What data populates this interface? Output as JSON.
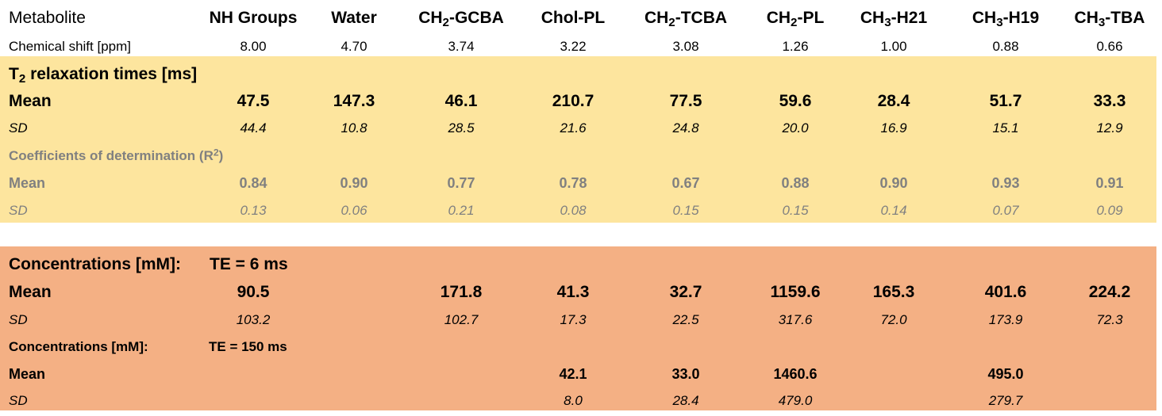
{
  "header": {
    "label": "Metabolite",
    "metabolites": [
      {
        "main": "NH Groups",
        "sub": "",
        "rest": ""
      },
      {
        "main": "Water",
        "sub": "",
        "rest": ""
      },
      {
        "main": "CH",
        "sub": "2",
        "rest": "-GCBA"
      },
      {
        "main": "Chol-PL",
        "sub": "",
        "rest": ""
      },
      {
        "main": "CH",
        "sub": "2",
        "rest": "-TCBA"
      },
      {
        "main": "CH",
        "sub": "2",
        "rest": "-PL"
      },
      {
        "main": "CH",
        "sub": "3",
        "rest": "-H21"
      },
      {
        "main": "CH",
        "sub": "3",
        "rest": "-H19"
      },
      {
        "main": "CH",
        "sub": "3",
        "rest": "-TBA"
      }
    ]
  },
  "chemical_shift": {
    "label": "Chemical shift [ppm]",
    "values": [
      "8.00",
      "4.70",
      "3.74",
      "3.22",
      "3.08",
      "1.26",
      "1.00",
      "0.88",
      "0.66"
    ]
  },
  "t2": {
    "title_prefix": "T",
    "title_sub": "2",
    "title_rest": " relaxation times [ms]",
    "mean_label": "Mean",
    "mean": [
      "47.5",
      "147.3",
      "46.1",
      "210.7",
      "77.5",
      "59.6",
      "28.4",
      "51.7",
      "33.3"
    ],
    "sd_label": "SD",
    "sd": [
      "44.4",
      "10.8",
      "28.5",
      "21.6",
      "24.8",
      "20.0",
      "16.9",
      "15.1",
      "12.9"
    ]
  },
  "r2": {
    "title": "Coefficients of determination (R",
    "title_sup": "2",
    "title_end": ")",
    "mean_label": "Mean",
    "mean": [
      "0.84",
      "0.90",
      "0.77",
      "0.78",
      "0.67",
      "0.88",
      "0.90",
      "0.93",
      "0.91"
    ],
    "sd_label": "SD",
    "sd": [
      "0.13",
      "0.06",
      "0.21",
      "0.08",
      "0.15",
      "0.15",
      "0.14",
      "0.07",
      "0.09"
    ]
  },
  "conc_te6": {
    "title": "Concentrations [mM]:",
    "te": "TE = 6 ms",
    "mean_label": "Mean",
    "mean": [
      "90.5",
      "",
      "171.8",
      "41.3",
      "32.7",
      "1159.6",
      "165.3",
      "401.6",
      "224.2"
    ],
    "sd_label": "SD",
    "sd": [
      "103.2",
      "",
      "102.7",
      "17.3",
      "22.5",
      "317.6",
      "72.0",
      "173.9",
      "72.3"
    ]
  },
  "conc_te150": {
    "title": "Concentrations [mM]:",
    "te": "TE = 150 ms",
    "mean_label": "Mean",
    "mean": [
      "",
      "",
      "",
      "42.1",
      "33.0",
      "1460.6",
      "",
      "495.0",
      ""
    ],
    "sd_label": "SD",
    "sd": [
      "",
      "",
      "",
      "8.0",
      "28.4",
      "479.0",
      "",
      "279.7",
      ""
    ]
  },
  "colors": {
    "t2_band": "#fde59e",
    "conc_band": "#f4b084",
    "r2_text": "#808080"
  }
}
